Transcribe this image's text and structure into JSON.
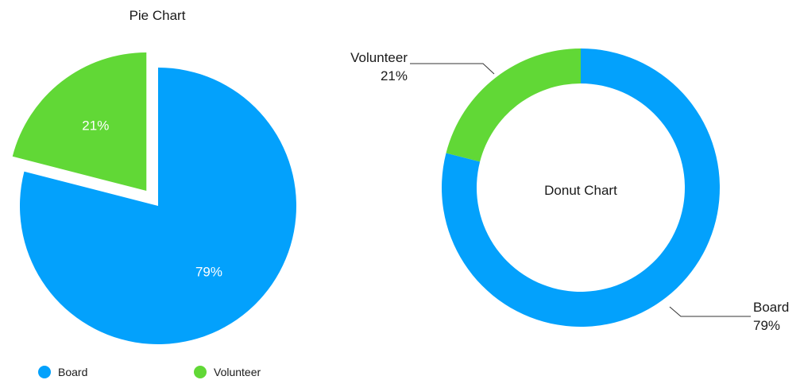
{
  "chart_data": [
    {
      "type": "pie",
      "title": "Pie Chart",
      "categories": [
        "Board",
        "Volunteer"
      ],
      "values": [
        79,
        21
      ],
      "labels": [
        "79%",
        "21%"
      ],
      "colors": [
        "#03a1fc",
        "#61d836"
      ],
      "exploded": "Volunteer",
      "legend": {
        "placement": "bottom",
        "entries": [
          "Board",
          "Volunteer"
        ]
      }
    },
    {
      "type": "pie",
      "variant": "donut",
      "title": "Donut Chart",
      "categories": [
        "Board",
        "Volunteer"
      ],
      "values": [
        79,
        21
      ],
      "labels": [
        "79%",
        "21%"
      ],
      "colors": [
        "#03a1fc",
        "#61d836"
      ],
      "label_style": "callouts-outside"
    }
  ]
}
